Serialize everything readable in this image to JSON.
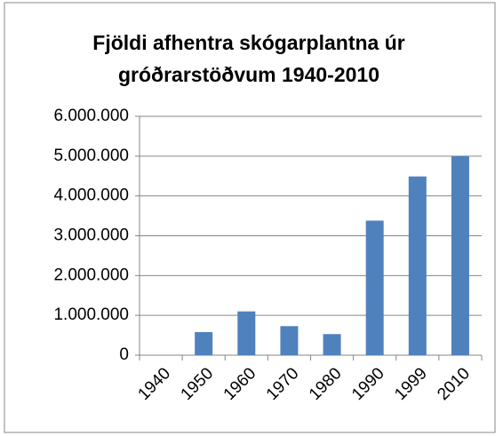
{
  "chart_data": {
    "type": "bar",
    "title": "Fjöldi afhentra skógarplantna úr gróðrarstöðvum 1940-2010",
    "categories": [
      "1940",
      "1950",
      "1960",
      "1970",
      "1980",
      "1990",
      "1999",
      "2010"
    ],
    "values": [
      0,
      580000,
      1100000,
      730000,
      530000,
      3380000,
      4490000,
      5000000
    ],
    "color": "#4f81bd",
    "ylim": [
      0,
      6000000
    ],
    "yticks": [
      0,
      {
        "value": 1000000,
        "label": "1.000.000"
      },
      {
        "value": 2000000,
        "label": "2.000.000"
      },
      {
        "value": 3000000,
        "label": "3.000.000"
      },
      {
        "value": 4000000,
        "label": "4.000.000"
      },
      {
        "value": 5000000,
        "label": "5.000.000"
      },
      {
        "value": 6000000,
        "label": "6.000.000"
      }
    ],
    "grid": true
  }
}
